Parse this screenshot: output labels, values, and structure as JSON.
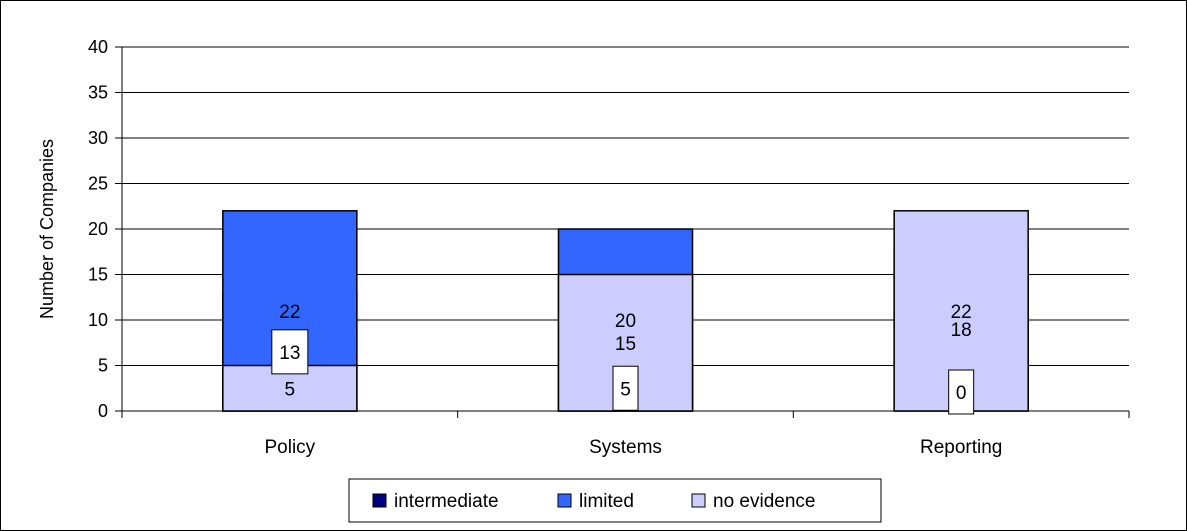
{
  "chart_data": {
    "type": "bar",
    "stacked": true,
    "categories": [
      "Policy",
      "Systems",
      "Reporting"
    ],
    "series": [
      {
        "name": "intermediate",
        "values": [
          13,
          5,
          0
        ],
        "color": "#000080"
      },
      {
        "name": "limited",
        "values": [
          22,
          20,
          18
        ],
        "color": "#3366FF"
      },
      {
        "name": "no evidence",
        "values": [
          5,
          15,
          22
        ],
        "color": "#CCCCFF"
      }
    ],
    "title": "",
    "xlabel": "",
    "ylabel": "Number of Companies",
    "ylim": [
      0,
      40
    ],
    "yticks": [
      0,
      5,
      10,
      15,
      20,
      25,
      30,
      35,
      40
    ],
    "grid": true,
    "legend_position": "bottom",
    "labeled_series_boxed": [
      "intermediate"
    ]
  }
}
